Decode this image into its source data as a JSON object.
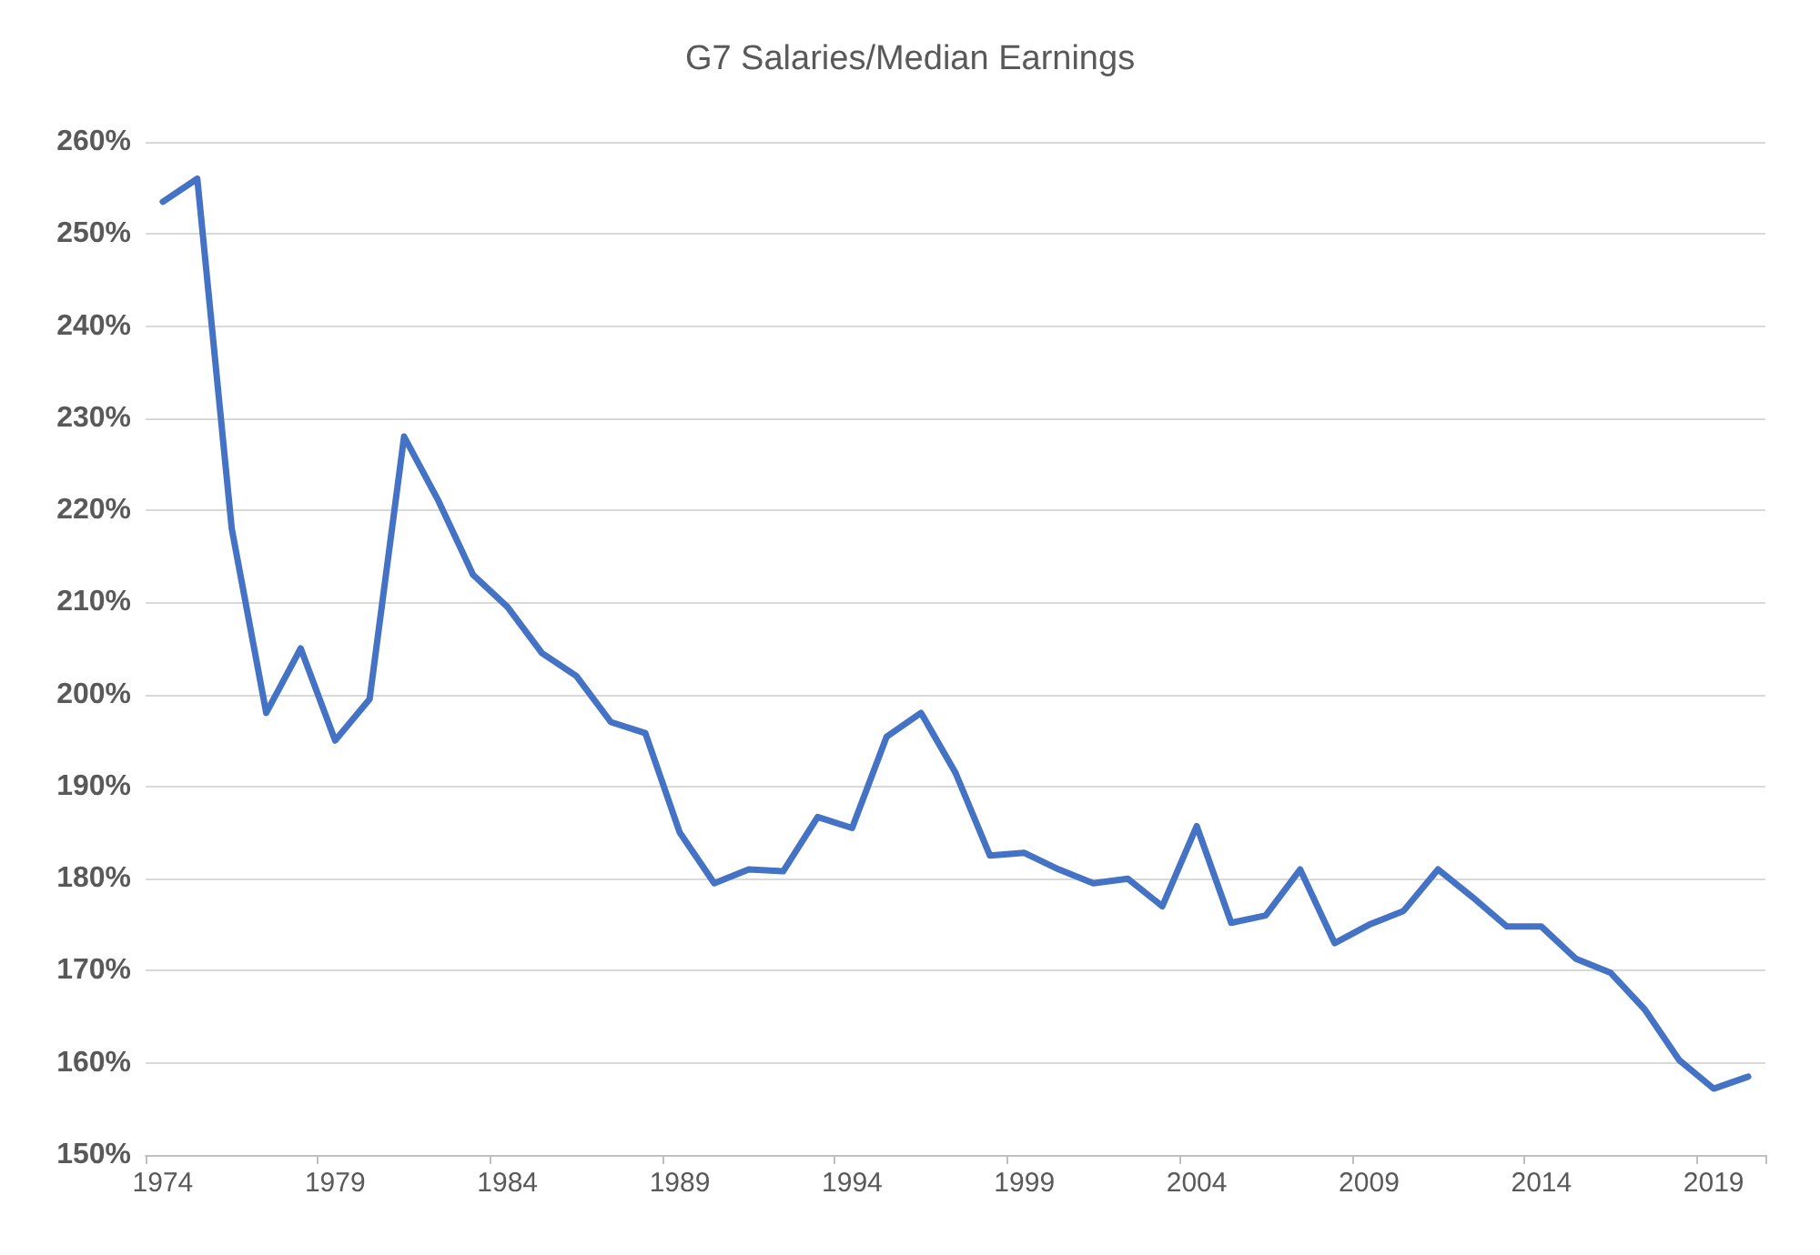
{
  "chart_data": {
    "type": "line",
    "title": "G7 Salaries/Median Earnings",
    "categories": [
      "1974",
      null,
      null,
      null,
      null,
      "1979",
      null,
      null,
      null,
      null,
      "1984",
      null,
      null,
      null,
      null,
      "1989",
      null,
      null,
      null,
      null,
      "1994",
      null,
      null,
      null,
      null,
      "1999",
      null,
      null,
      null,
      null,
      "2004",
      null,
      null,
      null,
      null,
      "2009",
      null,
      null,
      null,
      null,
      "2014",
      null,
      null,
      null,
      null,
      "2019",
      null
    ],
    "series": [
      {
        "color": "#4472c4",
        "values": [
          253.5,
          256,
          218,
          198,
          205,
          195,
          199.5,
          228,
          221,
          213,
          209.5,
          204.5,
          202,
          197,
          195.8,
          185,
          179.5,
          181,
          180.8,
          186.7,
          185.5,
          195.4,
          198,
          191.5,
          182.5,
          182.8,
          181,
          179.5,
          180,
          177,
          185.7,
          175.2,
          176,
          181,
          173,
          175,
          176.5,
          181,
          178,
          174.8,
          174.8,
          171.3,
          169.8,
          165.8,
          160.3,
          157.2,
          158.5
        ]
      }
    ],
    "ylim": [
      150,
      260
    ],
    "yticks": [
      {
        "value": 150,
        "label": "150%"
      },
      {
        "value": 160,
        "label": "160%"
      },
      {
        "value": 170,
        "label": "170%"
      },
      {
        "value": 180,
        "label": "180%"
      },
      {
        "value": 190,
        "label": "190%"
      },
      {
        "value": 200,
        "label": "200%"
      },
      {
        "value": 210,
        "label": "210%"
      },
      {
        "value": 220,
        "label": "220%"
      },
      {
        "value": 230,
        "label": "230%"
      },
      {
        "value": 240,
        "label": "240%"
      },
      {
        "value": 250,
        "label": "250%"
      },
      {
        "value": 260,
        "label": "260%"
      }
    ],
    "grid": "y",
    "marker": "none",
    "line_style": "solid"
  }
}
